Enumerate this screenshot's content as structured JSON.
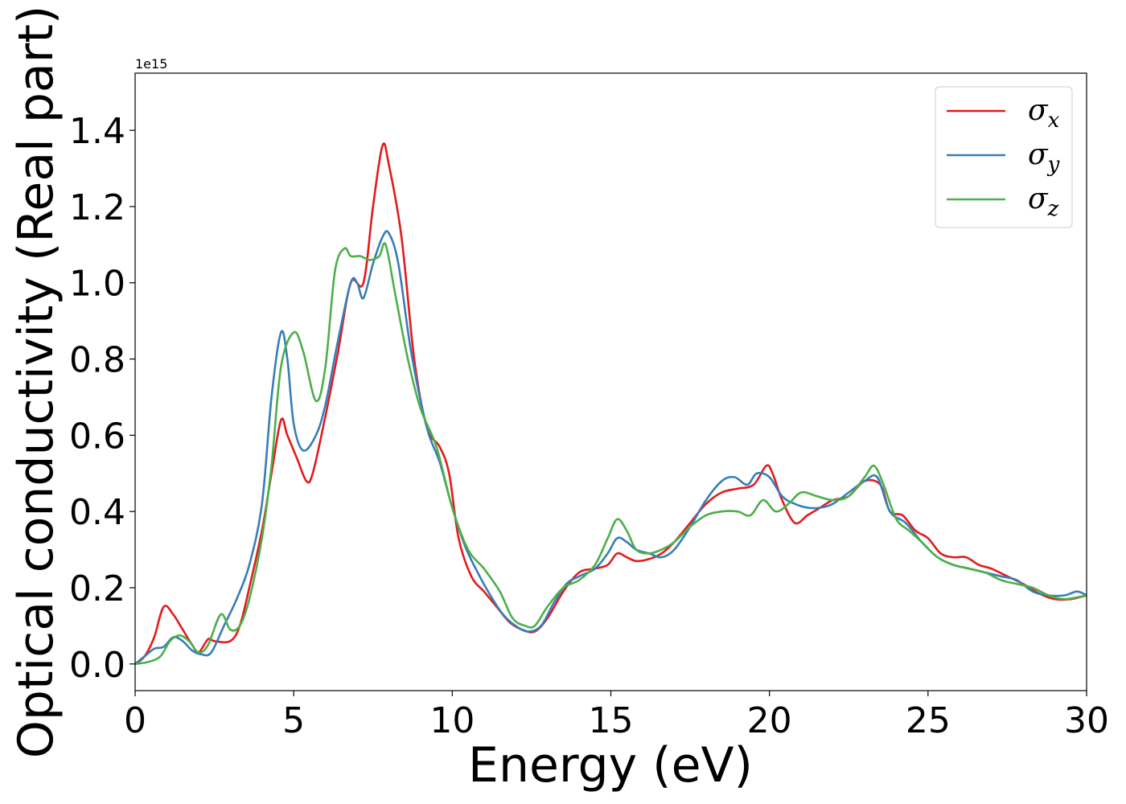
{
  "chart_data": {
    "type": "line",
    "title": "",
    "xlabel": "Energy (eV)",
    "ylabel": "Optical conductivity (Real part)",
    "y_offset_text": "1e15",
    "xlim": [
      0,
      30
    ],
    "ylim": [
      -0.07,
      1.55
    ],
    "y_scale_factor": 1000000000000000.0,
    "grid": false,
    "legend_position": "top-right",
    "xticks": [
      0,
      5,
      10,
      15,
      20,
      25,
      30
    ],
    "xtick_labels": [
      "0",
      "5",
      "10",
      "15",
      "20",
      "25",
      "30"
    ],
    "yticks": [
      0.0,
      0.2,
      0.4,
      0.6,
      0.8,
      1.0,
      1.2,
      1.4
    ],
    "ytick_labels": [
      "0.0",
      "0.2",
      "0.4",
      "0.6",
      "0.8",
      "1.0",
      "1.2",
      "1.4"
    ],
    "series": [
      {
        "name": "σx",
        "symbol": "σ",
        "subscript": "x",
        "color": "#e41a1c",
        "points": [
          [
            0,
            0
          ],
          [
            0.3,
            0.02
          ],
          [
            0.6,
            0.07
          ],
          [
            0.9,
            0.15
          ],
          [
            1.2,
            0.13
          ],
          [
            1.5,
            0.09
          ],
          [
            1.8,
            0.05
          ],
          [
            2.0,
            0.03
          ],
          [
            2.3,
            0.065
          ],
          [
            2.5,
            0.06
          ],
          [
            3.0,
            0.06
          ],
          [
            3.3,
            0.1
          ],
          [
            3.6,
            0.2
          ],
          [
            4.0,
            0.35
          ],
          [
            4.3,
            0.5
          ],
          [
            4.6,
            0.64
          ],
          [
            4.8,
            0.6
          ],
          [
            5.1,
            0.54
          ],
          [
            5.4,
            0.48
          ],
          [
            5.6,
            0.5
          ],
          [
            6.0,
            0.65
          ],
          [
            6.4,
            0.82
          ],
          [
            6.8,
            1.0
          ],
          [
            7.2,
            1.0
          ],
          [
            7.5,
            1.2
          ],
          [
            7.8,
            1.36
          ],
          [
            8.0,
            1.31
          ],
          [
            8.4,
            1.12
          ],
          [
            8.8,
            0.8
          ],
          [
            9.2,
            0.62
          ],
          [
            9.6,
            0.57
          ],
          [
            9.9,
            0.5
          ],
          [
            10.2,
            0.33
          ],
          [
            10.6,
            0.23
          ],
          [
            11.0,
            0.19
          ],
          [
            11.4,
            0.15
          ],
          [
            11.8,
            0.11
          ],
          [
            12.2,
            0.09
          ],
          [
            12.6,
            0.085
          ],
          [
            13.0,
            0.12
          ],
          [
            13.5,
            0.19
          ],
          [
            14.0,
            0.24
          ],
          [
            14.5,
            0.25
          ],
          [
            14.9,
            0.26
          ],
          [
            15.2,
            0.29
          ],
          [
            15.5,
            0.28
          ],
          [
            15.8,
            0.27
          ],
          [
            16.2,
            0.275
          ],
          [
            16.6,
            0.29
          ],
          [
            17.0,
            0.32
          ],
          [
            17.5,
            0.37
          ],
          [
            18.0,
            0.42
          ],
          [
            18.5,
            0.45
          ],
          [
            19.0,
            0.46
          ],
          [
            19.5,
            0.47
          ],
          [
            19.9,
            0.52
          ],
          [
            20.1,
            0.5
          ],
          [
            20.4,
            0.43
          ],
          [
            20.8,
            0.37
          ],
          [
            21.2,
            0.39
          ],
          [
            21.6,
            0.41
          ],
          [
            22.0,
            0.43
          ],
          [
            22.5,
            0.44
          ],
          [
            23.0,
            0.48
          ],
          [
            23.5,
            0.47
          ],
          [
            23.8,
            0.4
          ],
          [
            24.2,
            0.39
          ],
          [
            24.6,
            0.35
          ],
          [
            25.0,
            0.33
          ],
          [
            25.4,
            0.29
          ],
          [
            25.8,
            0.28
          ],
          [
            26.2,
            0.28
          ],
          [
            26.6,
            0.26
          ],
          [
            27.0,
            0.25
          ],
          [
            27.5,
            0.23
          ],
          [
            28.0,
            0.21
          ],
          [
            28.5,
            0.185
          ],
          [
            29.0,
            0.17
          ],
          [
            29.5,
            0.17
          ],
          [
            30.0,
            0.18
          ]
        ]
      },
      {
        "name": "σy",
        "symbol": "σ",
        "subscript": "y",
        "color": "#377eb8",
        "points": [
          [
            0,
            0
          ],
          [
            0.3,
            0.02
          ],
          [
            0.6,
            0.04
          ],
          [
            0.9,
            0.045
          ],
          [
            1.2,
            0.07
          ],
          [
            1.5,
            0.06
          ],
          [
            1.8,
            0.035
          ],
          [
            2.1,
            0.025
          ],
          [
            2.4,
            0.03
          ],
          [
            2.8,
            0.1
          ],
          [
            3.2,
            0.17
          ],
          [
            3.6,
            0.26
          ],
          [
            4.0,
            0.42
          ],
          [
            4.3,
            0.7
          ],
          [
            4.6,
            0.87
          ],
          [
            4.8,
            0.8
          ],
          [
            5.0,
            0.63
          ],
          [
            5.3,
            0.56
          ],
          [
            5.7,
            0.6
          ],
          [
            6.0,
            0.68
          ],
          [
            6.4,
            0.85
          ],
          [
            6.8,
            1.0
          ],
          [
            7.0,
            1.0
          ],
          [
            7.2,
            0.96
          ],
          [
            7.5,
            1.05
          ],
          [
            7.8,
            1.12
          ],
          [
            8.0,
            1.13
          ],
          [
            8.3,
            1.05
          ],
          [
            8.7,
            0.82
          ],
          [
            9.2,
            0.62
          ],
          [
            9.6,
            0.53
          ],
          [
            10.0,
            0.41
          ],
          [
            10.4,
            0.31
          ],
          [
            10.8,
            0.24
          ],
          [
            11.2,
            0.18
          ],
          [
            11.6,
            0.13
          ],
          [
            12.0,
            0.1
          ],
          [
            12.4,
            0.085
          ],
          [
            12.8,
            0.1
          ],
          [
            13.2,
            0.16
          ],
          [
            13.6,
            0.21
          ],
          [
            14.0,
            0.23
          ],
          [
            14.5,
            0.25
          ],
          [
            14.9,
            0.29
          ],
          [
            15.2,
            0.33
          ],
          [
            15.5,
            0.32
          ],
          [
            15.8,
            0.3
          ],
          [
            16.2,
            0.29
          ],
          [
            16.6,
            0.28
          ],
          [
            17.0,
            0.3
          ],
          [
            17.5,
            0.36
          ],
          [
            18.0,
            0.43
          ],
          [
            18.5,
            0.48
          ],
          [
            18.9,
            0.49
          ],
          [
            19.3,
            0.47
          ],
          [
            19.6,
            0.5
          ],
          [
            20.0,
            0.49
          ],
          [
            20.4,
            0.44
          ],
          [
            20.8,
            0.42
          ],
          [
            21.2,
            0.41
          ],
          [
            21.6,
            0.41
          ],
          [
            22.0,
            0.42
          ],
          [
            22.5,
            0.45
          ],
          [
            23.0,
            0.48
          ],
          [
            23.4,
            0.49
          ],
          [
            23.8,
            0.4
          ],
          [
            24.3,
            0.37
          ],
          [
            24.8,
            0.32
          ],
          [
            25.3,
            0.28
          ],
          [
            25.8,
            0.26
          ],
          [
            26.3,
            0.25
          ],
          [
            26.8,
            0.24
          ],
          [
            27.3,
            0.23
          ],
          [
            27.8,
            0.22
          ],
          [
            28.3,
            0.19
          ],
          [
            28.8,
            0.18
          ],
          [
            29.3,
            0.18
          ],
          [
            29.7,
            0.19
          ],
          [
            30.0,
            0.18
          ]
        ]
      },
      {
        "name": "σz",
        "symbol": "σ",
        "subscript": "z",
        "color": "#4daf4a",
        "points": [
          [
            0,
            0
          ],
          [
            0.4,
            0.005
          ],
          [
            0.8,
            0.02
          ],
          [
            1.1,
            0.06
          ],
          [
            1.4,
            0.075
          ],
          [
            1.7,
            0.06
          ],
          [
            2.0,
            0.03
          ],
          [
            2.3,
            0.05
          ],
          [
            2.7,
            0.13
          ],
          [
            3.0,
            0.09
          ],
          [
            3.3,
            0.1
          ],
          [
            3.6,
            0.17
          ],
          [
            4.0,
            0.33
          ],
          [
            4.3,
            0.52
          ],
          [
            4.6,
            0.78
          ],
          [
            5.0,
            0.87
          ],
          [
            5.3,
            0.82
          ],
          [
            5.7,
            0.69
          ],
          [
            6.0,
            0.78
          ],
          [
            6.3,
            1.03
          ],
          [
            6.6,
            1.09
          ],
          [
            6.8,
            1.07
          ],
          [
            7.1,
            1.07
          ],
          [
            7.4,
            1.06
          ],
          [
            7.7,
            1.07
          ],
          [
            7.9,
            1.1
          ],
          [
            8.2,
            0.97
          ],
          [
            8.6,
            0.8
          ],
          [
            9.0,
            0.67
          ],
          [
            9.5,
            0.57
          ],
          [
            10.0,
            0.41
          ],
          [
            10.5,
            0.3
          ],
          [
            11.0,
            0.25
          ],
          [
            11.5,
            0.19
          ],
          [
            11.9,
            0.12
          ],
          [
            12.3,
            0.1
          ],
          [
            12.6,
            0.1
          ],
          [
            13.0,
            0.15
          ],
          [
            13.5,
            0.2
          ],
          [
            14.0,
            0.22
          ],
          [
            14.5,
            0.26
          ],
          [
            14.9,
            0.33
          ],
          [
            15.2,
            0.38
          ],
          [
            15.5,
            0.35
          ],
          [
            15.8,
            0.3
          ],
          [
            16.2,
            0.29
          ],
          [
            16.6,
            0.3
          ],
          [
            17.0,
            0.32
          ],
          [
            17.5,
            0.36
          ],
          [
            18.0,
            0.39
          ],
          [
            18.5,
            0.4
          ],
          [
            19.0,
            0.4
          ],
          [
            19.4,
            0.39
          ],
          [
            19.8,
            0.43
          ],
          [
            20.2,
            0.4
          ],
          [
            20.6,
            0.42
          ],
          [
            21.0,
            0.45
          ],
          [
            21.5,
            0.44
          ],
          [
            22.0,
            0.43
          ],
          [
            22.5,
            0.44
          ],
          [
            23.0,
            0.49
          ],
          [
            23.3,
            0.52
          ],
          [
            23.6,
            0.47
          ],
          [
            24.0,
            0.38
          ],
          [
            24.4,
            0.35
          ],
          [
            24.8,
            0.32
          ],
          [
            25.3,
            0.28
          ],
          [
            25.8,
            0.26
          ],
          [
            26.3,
            0.25
          ],
          [
            26.8,
            0.24
          ],
          [
            27.3,
            0.22
          ],
          [
            27.8,
            0.21
          ],
          [
            28.3,
            0.2
          ],
          [
            28.8,
            0.18
          ],
          [
            29.3,
            0.17
          ],
          [
            30.0,
            0.18
          ]
        ]
      }
    ]
  }
}
